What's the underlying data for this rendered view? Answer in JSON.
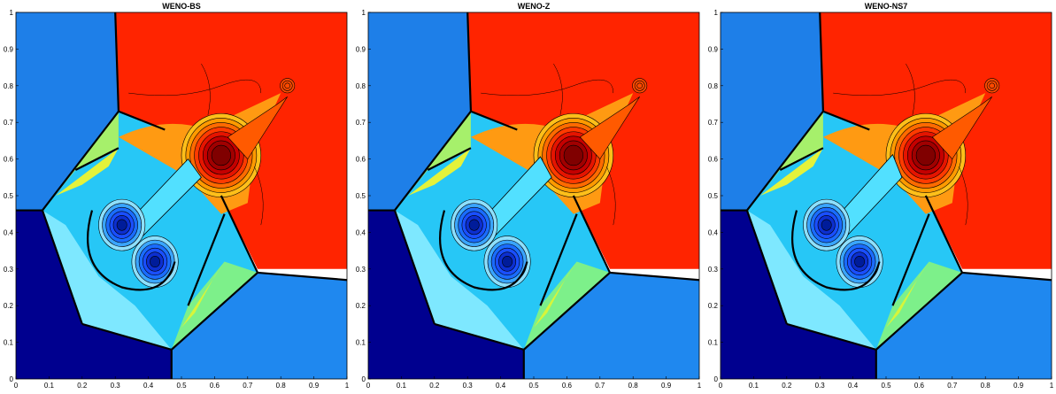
{
  "figure": {
    "panels": [
      {
        "title": "WENO-BS"
      },
      {
        "title": "WENO-Z"
      },
      {
        "title": "WENO-NS7"
      }
    ]
  },
  "chart_data": [
    {
      "type": "contour",
      "title": "WENO-BS",
      "xlim": [
        0,
        1
      ],
      "ylim": [
        0,
        1
      ],
      "xticks": [
        "0",
        "0.1",
        "0.2",
        "0.3",
        "0.4",
        "0.5",
        "0.6",
        "0.7",
        "0.8",
        "0.9",
        "1"
      ],
      "yticks": [
        "0",
        "0.1",
        "0.2",
        "0.3",
        "0.4",
        "0.5",
        "0.6",
        "0.7",
        "0.8",
        "0.9",
        "1"
      ],
      "grid": false,
      "colors": {
        "quadrant_top_left": "#1e7fe8",
        "quadrant_top_right": "#ff2400",
        "quadrant_bottom_left": "#00008f",
        "quadrant_bottom_right": "#1f88ef",
        "jet_high": "#800000",
        "jet_low": "#1a4fff"
      },
      "features": {
        "quadrant_interfaces": {
          "top_boundary_point": [
            0.3,
            1.0
          ],
          "left_boundary_point": [
            0.0,
            0.46
          ],
          "bottom_boundary_point": [
            0.47,
            0.0
          ],
          "right_boundary_point": [
            1.0,
            0.27
          ],
          "upper_left_kink": [
            0.31,
            0.73
          ],
          "lower_right_kink": [
            0.73,
            0.29
          ]
        },
        "vortex_centers": [
          [
            0.32,
            0.42
          ],
          [
            0.42,
            0.32
          ]
        ],
        "high_density_bubble_center": [
          0.62,
          0.61
        ],
        "jet_tip": [
          0.82,
          0.8
        ]
      }
    },
    {
      "type": "contour",
      "title": "WENO-Z",
      "xlim": [
        0,
        1
      ],
      "ylim": [
        0,
        1
      ],
      "xticks": [
        "0",
        "0.1",
        "0.2",
        "0.3",
        "0.4",
        "0.5",
        "0.6",
        "0.7",
        "0.8",
        "0.9",
        "1"
      ],
      "yticks": [
        "0",
        "0.1",
        "0.2",
        "0.3",
        "0.4",
        "0.5",
        "0.6",
        "0.7",
        "0.8",
        "0.9",
        "1"
      ],
      "grid": false,
      "colors": {
        "quadrant_top_left": "#1e7fe8",
        "quadrant_top_right": "#ff2400",
        "quadrant_bottom_left": "#00008f",
        "quadrant_bottom_right": "#1f88ef",
        "jet_high": "#800000",
        "jet_low": "#1a4fff"
      },
      "features": {
        "quadrant_interfaces": {
          "top_boundary_point": [
            0.3,
            1.0
          ],
          "left_boundary_point": [
            0.0,
            0.46
          ],
          "bottom_boundary_point": [
            0.47,
            0.0
          ],
          "right_boundary_point": [
            1.0,
            0.27
          ],
          "upper_left_kink": [
            0.31,
            0.73
          ],
          "lower_right_kink": [
            0.73,
            0.29
          ]
        },
        "vortex_centers": [
          [
            0.32,
            0.42
          ],
          [
            0.42,
            0.32
          ]
        ],
        "high_density_bubble_center": [
          0.62,
          0.61
        ],
        "jet_tip": [
          0.82,
          0.8
        ]
      }
    },
    {
      "type": "contour",
      "title": "WENO-NS7",
      "xlim": [
        0,
        1
      ],
      "ylim": [
        0,
        1
      ],
      "xticks": [
        "0",
        "0.1",
        "0.2",
        "0.3",
        "0.4",
        "0.5",
        "0.6",
        "0.7",
        "0.8",
        "0.9",
        "1"
      ],
      "yticks": [
        "0",
        "0.1",
        "0.2",
        "0.3",
        "0.4",
        "0.5",
        "0.6",
        "0.7",
        "0.8",
        "0.9",
        "1"
      ],
      "grid": false,
      "colors": {
        "quadrant_top_left": "#1e7fe8",
        "quadrant_top_right": "#ff2400",
        "quadrant_bottom_left": "#00008f",
        "quadrant_bottom_right": "#1f88ef",
        "jet_high": "#800000",
        "jet_low": "#1a4fff"
      },
      "features": {
        "quadrant_interfaces": {
          "top_boundary_point": [
            0.3,
            1.0
          ],
          "left_boundary_point": [
            0.0,
            0.46
          ],
          "bottom_boundary_point": [
            0.47,
            0.0
          ],
          "right_boundary_point": [
            1.0,
            0.27
          ],
          "upper_left_kink": [
            0.31,
            0.73
          ],
          "lower_right_kink": [
            0.73,
            0.29
          ]
        },
        "vortex_centers": [
          [
            0.32,
            0.42
          ],
          [
            0.42,
            0.32
          ]
        ],
        "high_density_bubble_center": [
          0.62,
          0.61
        ],
        "jet_tip": [
          0.82,
          0.8
        ]
      }
    }
  ]
}
